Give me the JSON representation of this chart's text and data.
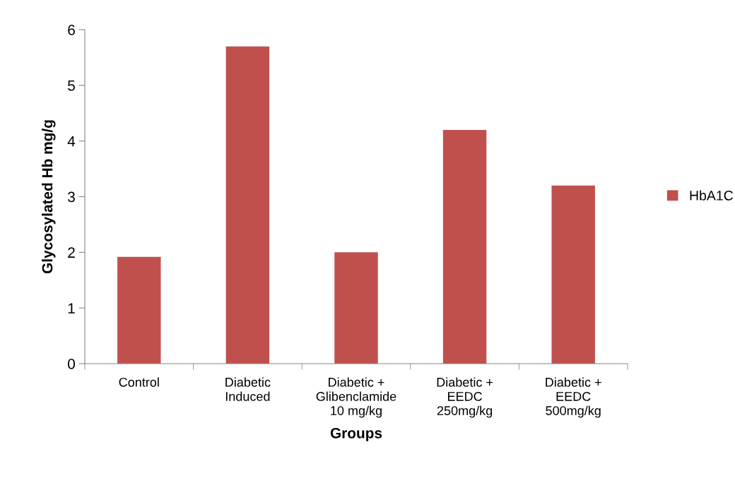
{
  "chart_data": {
    "type": "bar",
    "xlabel": "Groups",
    "ylabel": "Glycosylated Hb mg/g",
    "categories": [
      "Control",
      "Diabetic\nInduced",
      "Diabetic +\nGlibenclamide\n10 mg/kg",
      "Diabetic +\nEEDC\n250mg/kg",
      "Diabetic +\nEEDC\n500mg/kg"
    ],
    "series": [
      {
        "name": "HbA1C",
        "color": "#c0504d",
        "values": [
          1.92,
          5.7,
          2.0,
          4.2,
          3.2
        ]
      }
    ],
    "ylim": [
      0,
      6
    ],
    "yticks": [
      0,
      1,
      2,
      3,
      4,
      5,
      6
    ],
    "grid": false,
    "legend": "right"
  }
}
